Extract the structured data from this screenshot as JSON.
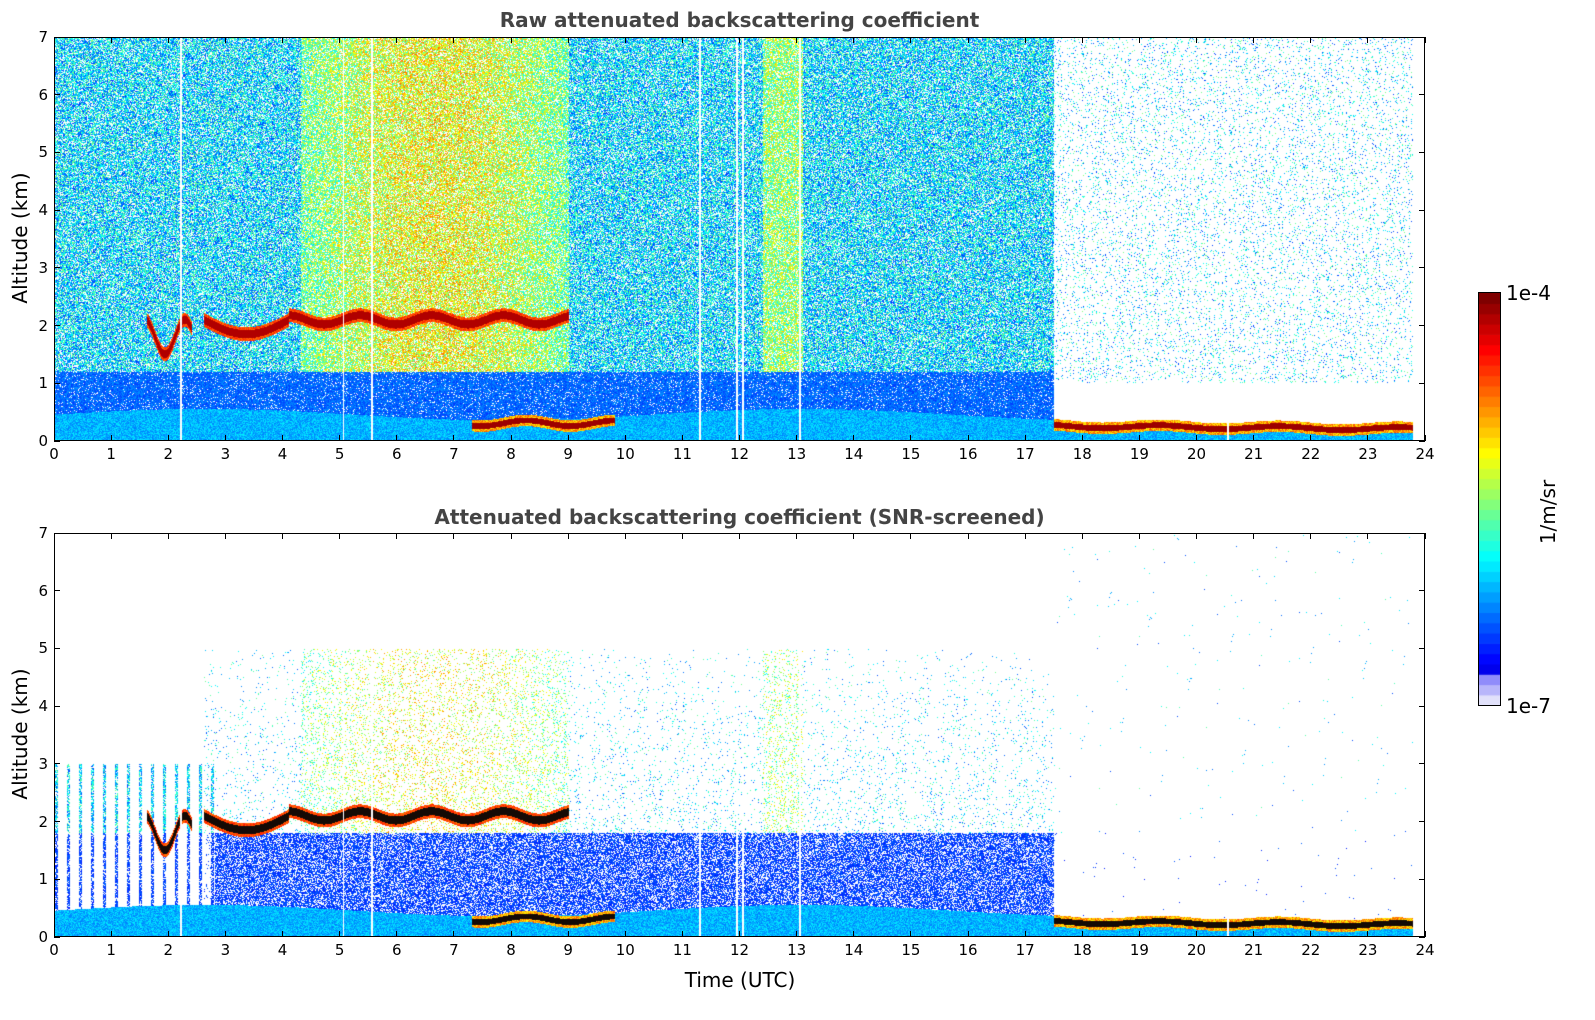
{
  "chart_data": [
    {
      "type": "heatmap",
      "title": "Raw attenuated backscattering coefficient",
      "xlabel": "",
      "ylabel": "Altitude (km)",
      "xlim": [
        0,
        24
      ],
      "ylim": [
        0,
        7
      ],
      "x_ticks": [
        "0",
        "1",
        "2",
        "3",
        "4",
        "5",
        "6",
        "7",
        "8",
        "9",
        "10",
        "11",
        "12",
        "13",
        "14",
        "15",
        "16",
        "17",
        "18",
        "19",
        "20",
        "21",
        "22",
        "23",
        "24"
      ],
      "y_ticks": [
        "0",
        "1",
        "2",
        "3",
        "4",
        "5",
        "6",
        "7"
      ],
      "data_end_time": 23.8,
      "noise_region_end_time": 17.5,
      "cloud_layers": [
        {
          "t_start": 1.6,
          "t_end": 2.4,
          "altitude": 2.0
        },
        {
          "t_start": 2.6,
          "t_end": 4.1,
          "altitude": 2.0
        },
        {
          "t_start": 4.1,
          "t_end": 9.0,
          "altitude": 2.1
        },
        {
          "t_start": 17.5,
          "t_end": 23.8,
          "altitude": 0.25
        }
      ],
      "grid": false
    },
    {
      "type": "heatmap",
      "title": "Attenuated backscattering coefficient (SNR-screened)",
      "xlabel": "Time (UTC)",
      "ylabel": "Altitude (km)",
      "xlim": [
        0,
        24
      ],
      "ylim": [
        0,
        7
      ],
      "x_ticks": [
        "0",
        "1",
        "2",
        "3",
        "4",
        "5",
        "6",
        "7",
        "8",
        "9",
        "10",
        "11",
        "12",
        "13",
        "14",
        "15",
        "16",
        "17",
        "18",
        "19",
        "20",
        "21",
        "22",
        "23",
        "24"
      ],
      "y_ticks": [
        "0",
        "1",
        "2",
        "3",
        "4",
        "5",
        "6",
        "7"
      ],
      "data_end_time": 23.8,
      "grid": false
    }
  ],
  "colorbar": {
    "label": "1/m/sr",
    "max_label": "1e-4",
    "min_label": "1e-7",
    "scale": "log",
    "range": [
      1e-07,
      0.0001
    ],
    "colormap": "jet"
  }
}
